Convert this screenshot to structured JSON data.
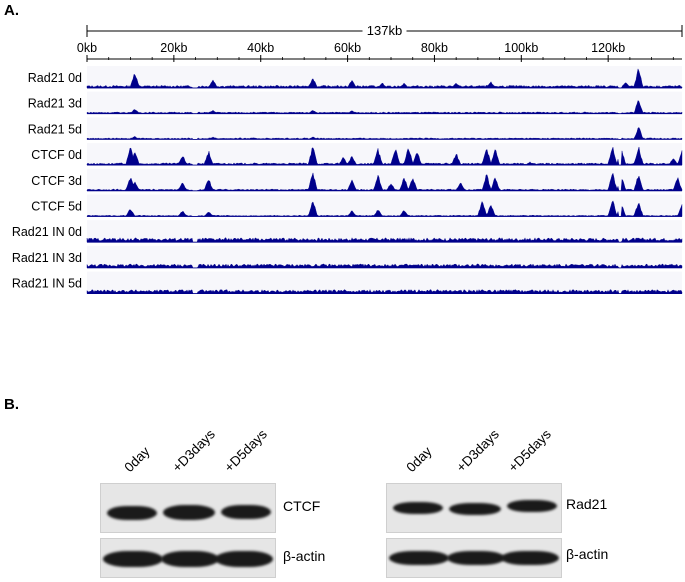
{
  "panel_a": {
    "label": "A.",
    "scale_label": "137kb",
    "ticks": [
      "0kb",
      "20kb",
      "40kb",
      "60kb",
      "80kb",
      "100kb",
      "120kb"
    ],
    "track_color": "#00008b",
    "tracks": [
      {
        "name": "Rad21 0d",
        "peaks": [
          [
            11,
            0.8
          ],
          [
            29,
            0.45
          ],
          [
            52,
            0.55
          ],
          [
            61,
            0.4
          ],
          [
            68,
            0.25
          ],
          [
            73,
            0.25
          ],
          [
            85,
            0.25
          ],
          [
            93,
            0.3
          ],
          [
            124,
            0.3
          ],
          [
            127,
            1.0
          ]
        ],
        "noise": 0.12
      },
      {
        "name": "Rad21 3d",
        "peaks": [
          [
            11,
            0.25
          ],
          [
            29,
            0.18
          ],
          [
            52,
            0.2
          ],
          [
            61,
            0.15
          ],
          [
            127,
            0.75
          ]
        ],
        "noise": 0.08
      },
      {
        "name": "Rad21 5d",
        "peaks": [
          [
            11,
            0.15
          ],
          [
            29,
            0.12
          ],
          [
            52,
            0.12
          ],
          [
            127,
            0.65
          ]
        ],
        "noise": 0.07
      },
      {
        "name": "CTCF 0d",
        "peaks": [
          [
            10,
            0.9
          ],
          [
            11,
            0.7
          ],
          [
            22,
            0.5
          ],
          [
            28,
            0.7
          ],
          [
            52,
            0.95
          ],
          [
            59,
            0.4
          ],
          [
            61,
            0.45
          ],
          [
            67,
            0.8
          ],
          [
            71,
            0.85
          ],
          [
            74,
            0.95
          ],
          [
            76,
            0.7
          ],
          [
            85,
            0.6
          ],
          [
            92,
            0.9
          ],
          [
            94,
            0.8
          ],
          [
            102,
            0.15
          ],
          [
            121,
            0.95
          ],
          [
            123,
            0.85
          ],
          [
            127,
            0.95
          ],
          [
            135,
            0.35
          ],
          [
            137,
            0.7
          ]
        ],
        "noise": 0.1
      },
      {
        "name": "CTCF 3d",
        "peaks": [
          [
            10,
            0.7
          ],
          [
            11,
            0.5
          ],
          [
            22,
            0.4
          ],
          [
            28,
            0.6
          ],
          [
            52,
            0.9
          ],
          [
            61,
            0.55
          ],
          [
            67,
            0.8
          ],
          [
            70,
            0.4
          ],
          [
            73,
            0.7
          ],
          [
            75,
            0.65
          ],
          [
            86,
            0.45
          ],
          [
            92,
            0.85
          ],
          [
            94,
            0.7
          ],
          [
            121,
            0.9
          ],
          [
            123,
            0.8
          ],
          [
            127,
            0.85
          ],
          [
            136,
            0.65
          ]
        ],
        "noise": 0.08
      },
      {
        "name": "CTCF 5d",
        "peaks": [
          [
            10,
            0.4
          ],
          [
            22,
            0.3
          ],
          [
            28,
            0.25
          ],
          [
            52,
            0.8
          ],
          [
            61,
            0.3
          ],
          [
            67,
            0.35
          ],
          [
            73,
            0.35
          ],
          [
            91,
            0.8
          ],
          [
            93,
            0.6
          ],
          [
            121,
            0.85
          ],
          [
            123,
            0.7
          ],
          [
            127,
            0.75
          ],
          [
            137,
            0.55
          ]
        ],
        "noise": 0.06
      },
      {
        "name": "Rad21 IN 0d",
        "peaks": [],
        "noise": 0.2
      },
      {
        "name": "Rad21 IN 3d",
        "peaks": [],
        "noise": 0.18
      },
      {
        "name": "Rad21 IN 5d",
        "peaks": [],
        "noise": 0.18
      }
    ]
  },
  "panel_b": {
    "label": "B.",
    "lanes": [
      "0day",
      "+D3days",
      "+D5days"
    ],
    "blots": [
      {
        "protein": "CTCF",
        "loading": "β-actin"
      },
      {
        "protein": "Rad21",
        "loading": "β-actin"
      }
    ]
  }
}
